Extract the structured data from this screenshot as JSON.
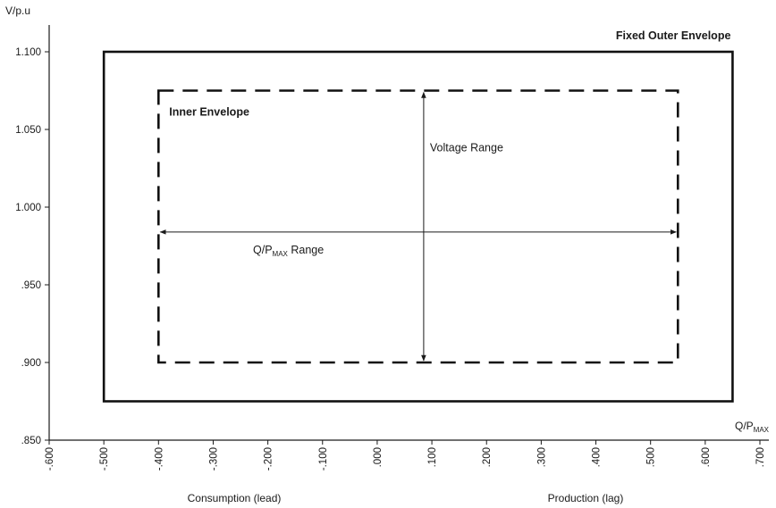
{
  "chart_data": {
    "type": "diagram",
    "ylabel": "V/p.u",
    "xlabel_main": "Q/P",
    "xlabel_sub": "MAX",
    "x_ticks": [
      "-.600",
      "-.500",
      "-.400",
      "-.300",
      "-.200",
      "-.100",
      ".000",
      ".100",
      ".200",
      ".300",
      ".400",
      ".500",
      ".600",
      ".700"
    ],
    "x_tick_values": [
      -0.6,
      -0.5,
      -0.4,
      -0.3,
      -0.2,
      -0.1,
      0.0,
      0.1,
      0.2,
      0.3,
      0.4,
      0.5,
      0.6,
      0.7
    ],
    "y_ticks": [
      ".850",
      ".900",
      ".950",
      "1.000",
      "1.050",
      "1.100"
    ],
    "y_tick_values": [
      0.85,
      0.9,
      0.95,
      1.0,
      1.05,
      1.1
    ],
    "xlim": [
      -0.6,
      0.7
    ],
    "ylim": [
      0.85,
      1.1
    ],
    "region_labels": {
      "left": "Consumption (lead)",
      "right": "Production (lag)"
    },
    "outer_envelope": {
      "label": "Fixed Outer Envelope",
      "x": [
        -0.5,
        0.65
      ],
      "y": [
        0.875,
        1.1
      ]
    },
    "inner_envelope": {
      "label": "Inner Envelope",
      "x": [
        -0.4,
        0.55
      ],
      "y": [
        0.9,
        1.075
      ]
    },
    "voltage_range": {
      "label": "Voltage Range",
      "x": 0.085,
      "y": [
        0.9,
        1.075
      ]
    },
    "q_range": {
      "label_main": "Q/P",
      "label_sub": "MAX",
      "label_suffix": " Range",
      "y": 0.984,
      "x": [
        -0.4,
        0.55
      ]
    }
  }
}
